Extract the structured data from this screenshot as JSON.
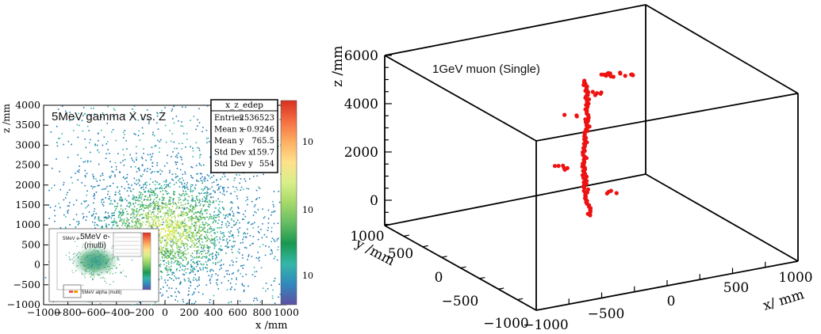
{
  "chart_data": [
    {
      "type": "heatmap",
      "annotation": "5MeV gamma X vs. Z",
      "xlabel": "x /mm",
      "ylabel": "z /mm",
      "xlim": [
        -1000,
        1000
      ],
      "ylim": [
        -1000,
        4000
      ],
      "x_ticks": [
        "−1000",
        "−800",
        "−600",
        "−400",
        "−200",
        "0",
        "200",
        "400",
        "600",
        "800",
        "1000"
      ],
      "y_ticks": [
        "−1000",
        "−500",
        "0",
        "500",
        "1000",
        "1500",
        "2000",
        "2500",
        "3000",
        "3500",
        "4000"
      ],
      "stats": {
        "title": "x_z_edep",
        "rows": [
          {
            "label": "Entries",
            "value": "2536523"
          },
          {
            "label": "Mean x",
            "value": "−0.9246"
          },
          {
            "label": "Mean y",
            "value": "765.5"
          },
          {
            "label": "Std Dev x",
            "value": "159.7"
          },
          {
            "label": "Std Dev y",
            "value": "554"
          }
        ]
      },
      "colorbar_labels": [
        "10",
        "10",
        "10"
      ],
      "colorbar_colors": [
        "#d7301f",
        "#f46d43",
        "#fdae61",
        "#fee08b",
        "#d9ef8b",
        "#a6d96a",
        "#66bd63",
        "#1a9850",
        "#35b7a8",
        "#3288bd",
        "#5e4fa2"
      ],
      "inset": {
        "annotation": "5MeV e-\n(multi)",
        "small_label": "5MeV e-",
        "lower_label": "5MeV alpha (multi)"
      }
    },
    {
      "type": "scatter",
      "subtype": "3d",
      "title": "1GeV muon (Single)",
      "xlabel": "x/ mm",
      "ylabel": "y /mm",
      "zlabel": "z /mm",
      "xlim": [
        -1000,
        1000
      ],
      "ylim": [
        -1000,
        1000
      ],
      "zlim": [
        -1000,
        6000
      ],
      "x_ticks": [
        "−1000",
        "−500",
        "0",
        "500",
        "1000"
      ],
      "y_ticks": [
        "−1000",
        "−500",
        "0",
        "500",
        "1000"
      ],
      "z_ticks": [
        "0",
        "2000",
        "4000",
        "6000"
      ],
      "point_color": "#ee1111"
    }
  ]
}
